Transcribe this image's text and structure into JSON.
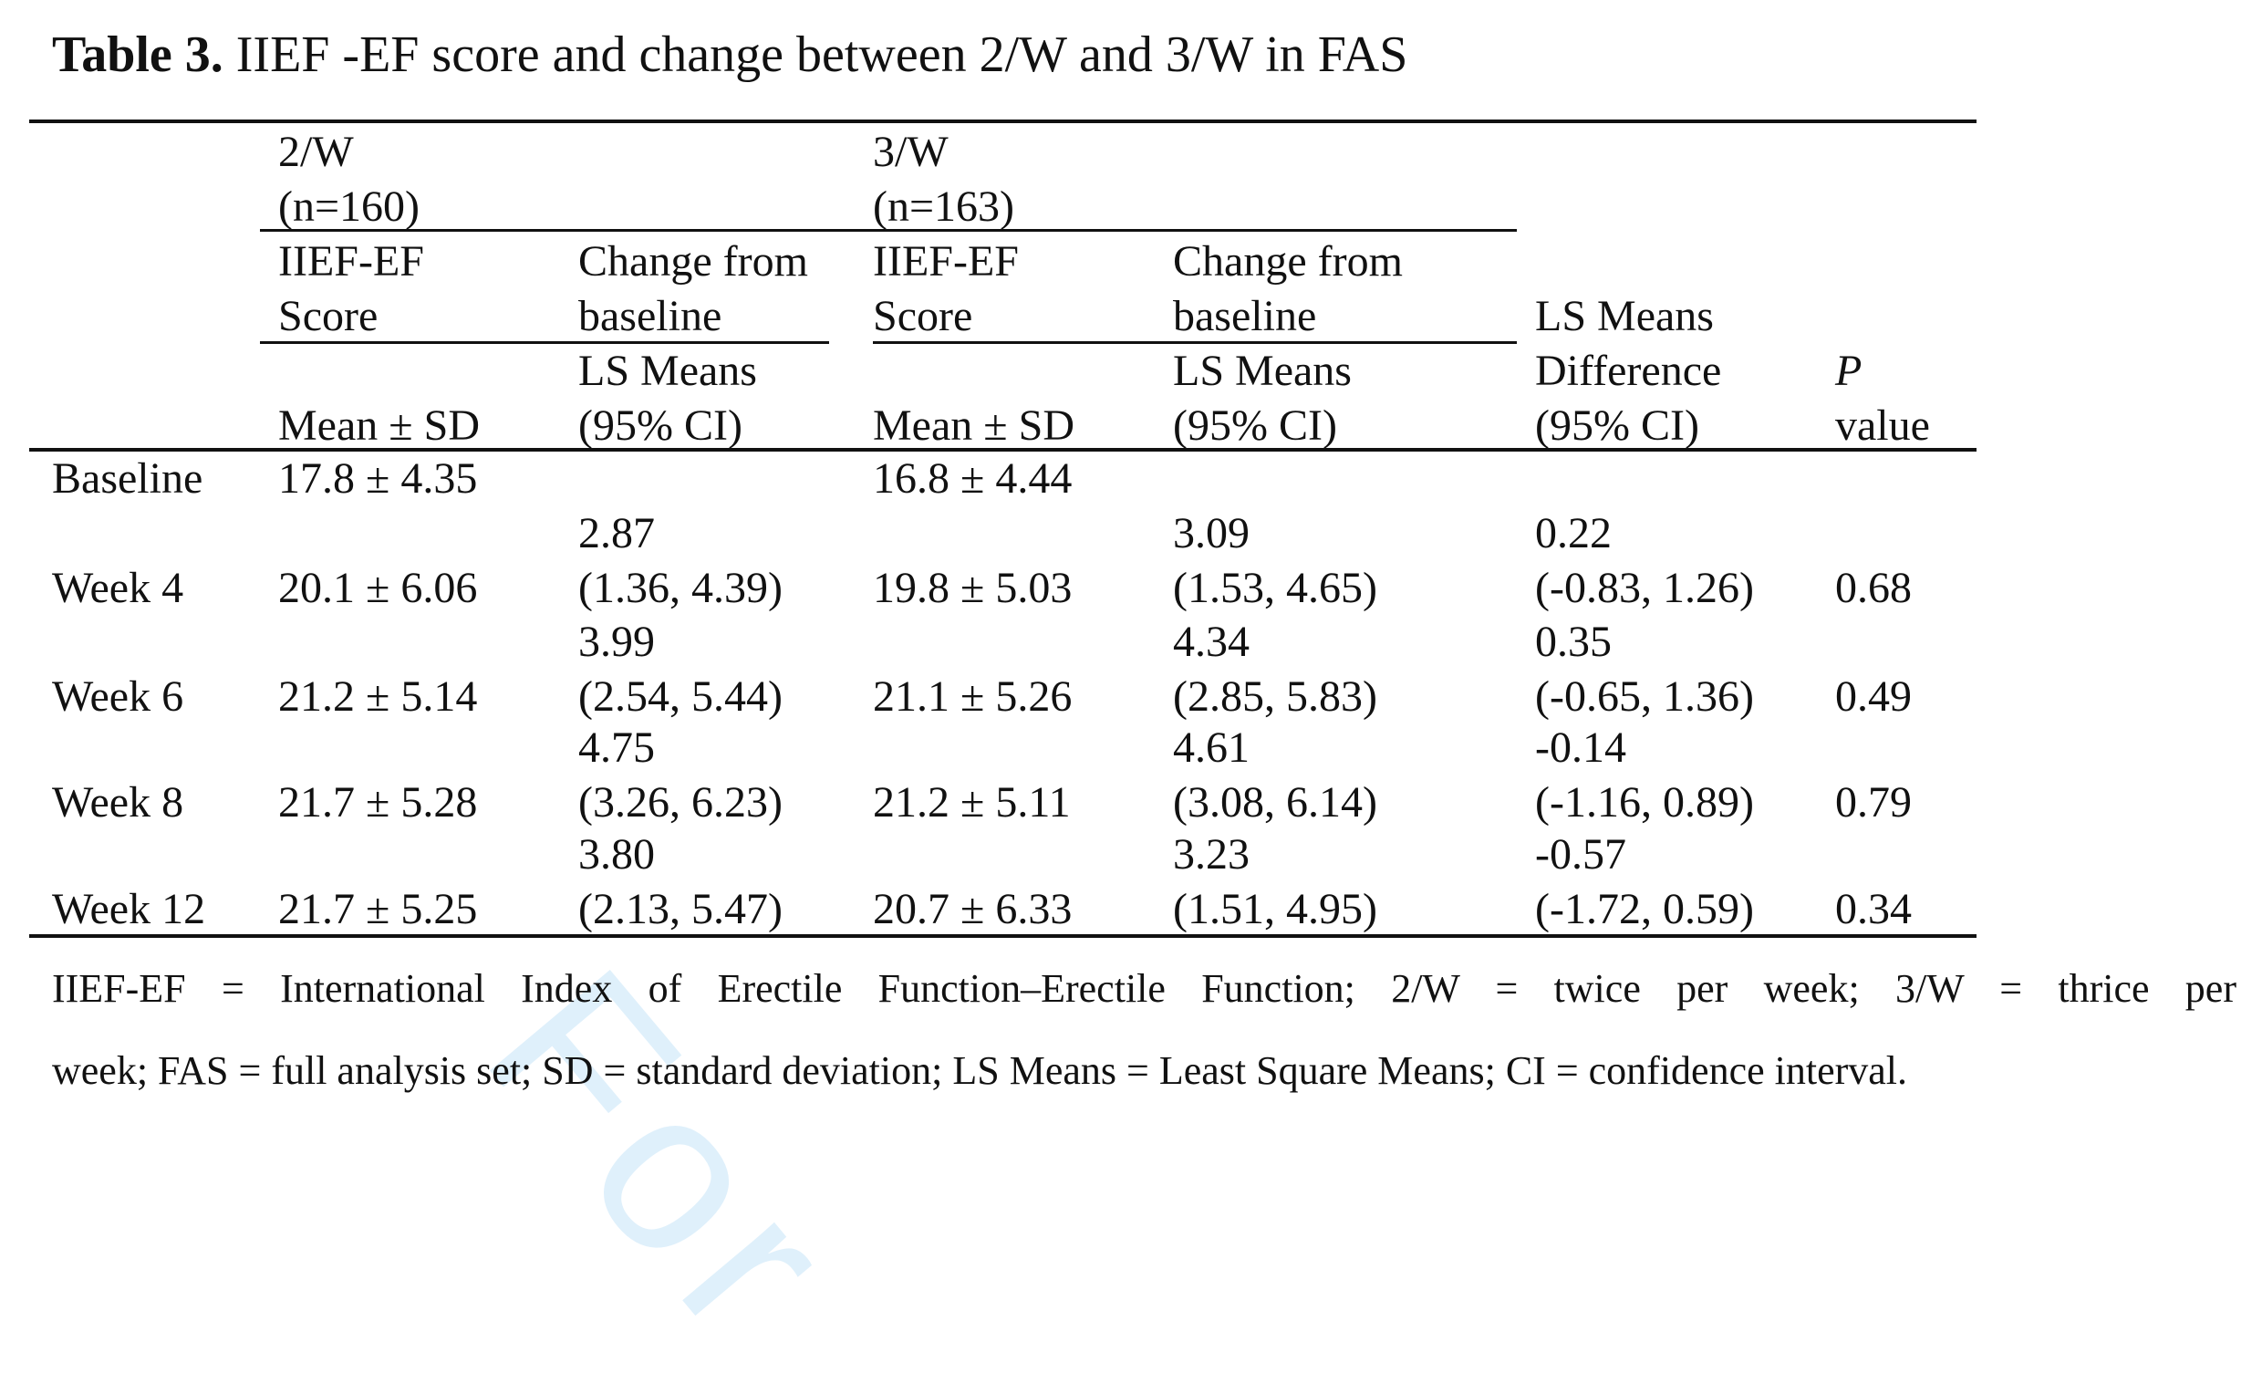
{
  "caption": {
    "label": "Table 3.",
    "text": "IIEF -EF score and change between 2/W and 3/W in FAS"
  },
  "watermark": "For",
  "header": {
    "group_2w": [
      "2/W",
      "(n=160)"
    ],
    "group_3w": [
      "3/W",
      "(n=163)"
    ],
    "sub_2w_score": [
      "IIEF-EF",
      "Score"
    ],
    "sub_2w_change": [
      "Change from",
      "baseline"
    ],
    "sub_3w_score": [
      "IIEF-EF",
      "Score"
    ],
    "sub_3w_change": [
      "Change from",
      "baseline"
    ],
    "stat_2w_score": "Mean ± SD",
    "stat_2w_change": [
      "LS Means",
      "(95% CI)"
    ],
    "stat_3w_score": "Mean ± SD",
    "stat_3w_change": [
      "LS Means",
      "(95% CI)"
    ],
    "ls_diff": [
      "LS Means",
      "Difference",
      "(95% CI)"
    ],
    "p_value": [
      "P",
      "value"
    ]
  },
  "rows": [
    {
      "label": "Baseline",
      "score_2w": "17.8 ± 4.35",
      "change_2w": [
        "",
        ""
      ],
      "score_3w": "16.8 ± 4.44",
      "change_3w": [
        "",
        ""
      ],
      "diff": [
        "",
        ""
      ],
      "p": ""
    },
    {
      "label": "Week 4",
      "score_2w": "20.1 ± 6.06",
      "change_2w": [
        "2.87",
        "(1.36, 4.39)"
      ],
      "score_3w": "19.8 ± 5.03",
      "change_3w": [
        "3.09",
        "(1.53, 4.65)"
      ],
      "diff": [
        "0.22",
        "(-0.83, 1.26)"
      ],
      "p": "0.68"
    },
    {
      "label": "Week 6",
      "score_2w": "21.2 ± 5.14",
      "change_2w": [
        "3.99",
        "(2.54, 5.44)"
      ],
      "score_3w": "21.1 ± 5.26",
      "change_3w": [
        "4.34",
        "(2.85, 5.83)"
      ],
      "diff": [
        "0.35",
        "(-0.65, 1.36)"
      ],
      "p": "0.49"
    },
    {
      "label": "Week 8",
      "score_2w": "21.7 ± 5.28",
      "change_2w": [
        "4.75",
        "(3.26, 6.23)"
      ],
      "score_3w": "21.2 ± 5.11",
      "change_3w": [
        "4.61",
        "(3.08, 6.14)"
      ],
      "diff": [
        "-0.14",
        "(-1.16, 0.89)"
      ],
      "p": "0.79"
    },
    {
      "label": "Week 12",
      "score_2w": "21.7 ± 5.25",
      "change_2w": [
        "3.80",
        "(2.13, 5.47)"
      ],
      "score_3w": "20.7 ± 6.33",
      "change_3w": [
        "3.23",
        "(1.51, 4.95)"
      ],
      "diff": [
        "-0.57",
        "(-1.72, 0.59)"
      ],
      "p": "0.34"
    }
  ],
  "footnote": [
    "IIEF-EF = International Index of Erectile Function–Erectile Function; 2/W = twice per week; 3/W = thrice per",
    "week; FAS = full analysis set; SD = standard deviation; LS Means = Least Square Means; CI = confidence interval."
  ]
}
